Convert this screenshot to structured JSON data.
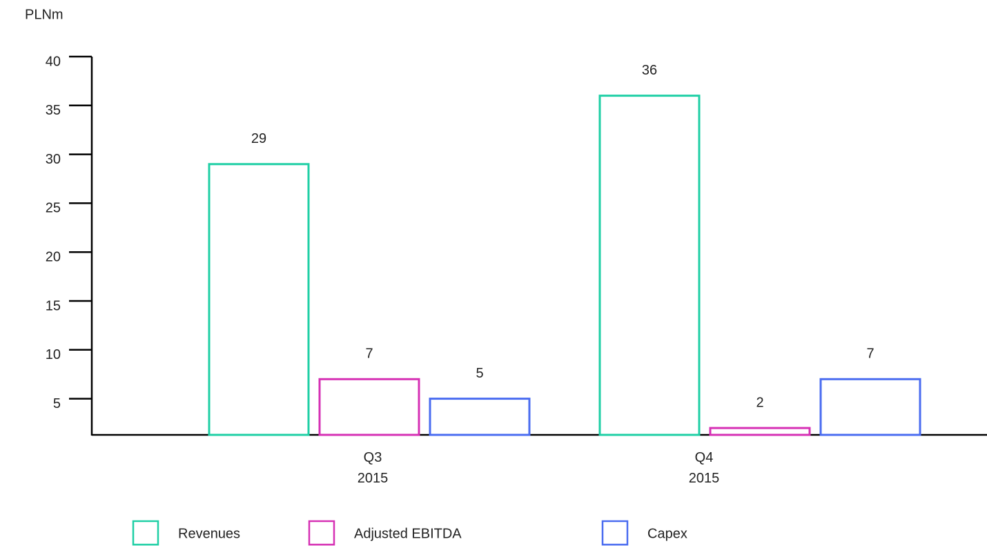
{
  "chart_data": {
    "type": "bar",
    "ylabel": "PLNm",
    "categories": [
      "Q3\n2015",
      "Q4\n2015"
    ],
    "series": [
      {
        "name": "Revenues",
        "color": "#1fcfa5",
        "values": [
          29,
          36
        ]
      },
      {
        "name": "Adjusted EBITDA",
        "color": "#d630b4",
        "values": [
          7,
          2
        ]
      },
      {
        "name": "Capex",
        "color": "#4a6cf0",
        "values": [
          5,
          7
        ]
      }
    ],
    "ylim": [
      1.3,
      40
    ],
    "yticks": [
      5,
      10,
      15,
      20,
      25,
      30,
      35,
      40
    ],
    "legend": "bottom"
  }
}
